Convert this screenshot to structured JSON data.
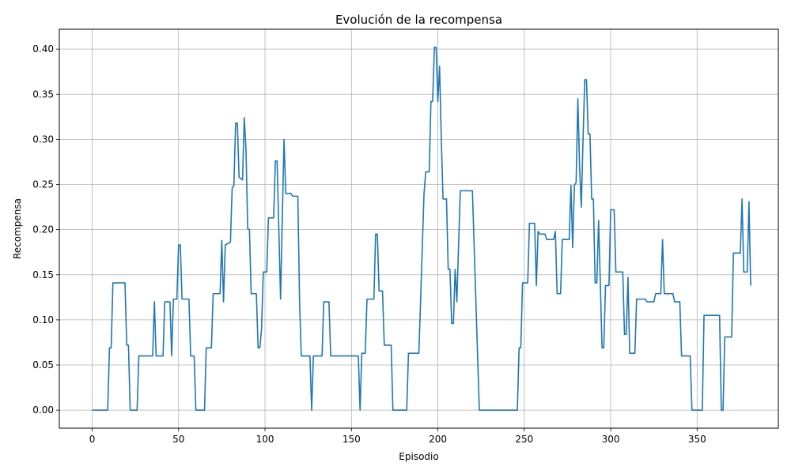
{
  "chart_data": {
    "type": "line",
    "title": "Evolución de la recompensa",
    "xlabel": "Episodio",
    "ylabel": "Recompensa",
    "xlim": [
      -19,
      397
    ],
    "ylim": [
      -0.02,
      0.422
    ],
    "xticks": [
      0,
      50,
      100,
      150,
      200,
      250,
      300,
      350
    ],
    "yticks": [
      0.0,
      0.05,
      0.1,
      0.15,
      0.2,
      0.25,
      0.3,
      0.35,
      0.4
    ],
    "ytick_labels": [
      "0.00",
      "0.05",
      "0.10",
      "0.15",
      "0.20",
      "0.25",
      "0.30",
      "0.35",
      "0.40"
    ],
    "grid": true,
    "legend": "none",
    "series": [
      {
        "color": "#1f77b4",
        "points": [
          [
            0,
            0
          ],
          [
            9,
            0
          ],
          [
            10,
            0.069
          ],
          [
            11,
            0.069
          ],
          [
            12,
            0.141
          ],
          [
            19,
            0.141
          ],
          [
            20,
            0.072
          ],
          [
            21,
            0.072
          ],
          [
            22,
            0
          ],
          [
            26,
            0
          ],
          [
            27,
            0.06
          ],
          [
            35,
            0.06
          ],
          [
            36,
            0.12
          ],
          [
            37,
            0.06
          ],
          [
            41,
            0.06
          ],
          [
            42,
            0.12
          ],
          [
            45,
            0.12
          ],
          [
            46,
            0.06
          ],
          [
            47,
            0.123
          ],
          [
            49,
            0.123
          ],
          [
            50,
            0.183
          ],
          [
            51,
            0.183
          ],
          [
            52,
            0.123
          ],
          [
            56,
            0.123
          ],
          [
            57,
            0.06
          ],
          [
            59,
            0.06
          ],
          [
            60,
            0
          ],
          [
            65,
            0
          ],
          [
            66,
            0.069
          ],
          [
            69,
            0.069
          ],
          [
            70,
            0.129
          ],
          [
            74,
            0.129
          ],
          [
            75,
            0.188
          ],
          [
            76,
            0.12
          ],
          [
            77,
            0.183
          ],
          [
            80,
            0.186
          ],
          [
            81,
            0.246
          ],
          [
            82,
            0.249
          ],
          [
            83,
            0.318
          ],
          [
            84,
            0.318
          ],
          [
            85,
            0.258
          ],
          [
            87,
            0.255
          ],
          [
            88,
            0.324
          ],
          [
            89,
            0.289
          ],
          [
            90,
            0.201
          ],
          [
            91,
            0.2
          ],
          [
            92,
            0.129
          ],
          [
            95,
            0.129
          ],
          [
            96,
            0.069
          ],
          [
            97,
            0.069
          ],
          [
            98,
            0.09
          ],
          [
            99,
            0.153
          ],
          [
            101,
            0.153
          ],
          [
            102,
            0.213
          ],
          [
            105,
            0.213
          ],
          [
            106,
            0.276
          ],
          [
            107,
            0.276
          ],
          [
            108,
            0.2
          ],
          [
            109,
            0.123
          ],
          [
            111,
            0.3
          ],
          [
            112,
            0.24
          ],
          [
            115,
            0.24
          ],
          [
            116,
            0.237
          ],
          [
            119,
            0.237
          ],
          [
            120,
            0.12
          ],
          [
            121,
            0.06
          ],
          [
            126,
            0.06
          ],
          [
            127,
            0
          ],
          [
            128,
            0.06
          ],
          [
            133,
            0.06
          ],
          [
            134,
            0.12
          ],
          [
            137,
            0.12
          ],
          [
            138,
            0.06
          ],
          [
            154,
            0.06
          ],
          [
            155,
            0
          ],
          [
            156,
            0.063
          ],
          [
            158,
            0.063
          ],
          [
            159,
            0.123
          ],
          [
            163,
            0.123
          ],
          [
            164,
            0.195
          ],
          [
            165,
            0.195
          ],
          [
            166,
            0.132
          ],
          [
            168,
            0.132
          ],
          [
            169,
            0.072
          ],
          [
            173,
            0.072
          ],
          [
            174,
            0
          ],
          [
            182,
            0
          ],
          [
            183,
            0.063
          ],
          [
            189,
            0.063
          ],
          [
            190,
            0.12
          ],
          [
            191,
            0.18
          ],
          [
            192,
            0.24
          ],
          [
            193,
            0.264
          ],
          [
            195,
            0.264
          ],
          [
            196,
            0.342
          ],
          [
            197,
            0.342
          ],
          [
            198,
            0.402
          ],
          [
            199,
            0.402
          ],
          [
            200,
            0.342
          ],
          [
            201,
            0.381
          ],
          [
            202,
            0.3
          ],
          [
            203,
            0.234
          ],
          [
            205,
            0.234
          ],
          [
            206,
            0.156
          ],
          [
            207,
            0.156
          ],
          [
            208,
            0.096
          ],
          [
            209,
            0.096
          ],
          [
            210,
            0.156
          ],
          [
            211,
            0.12
          ],
          [
            212,
            0.183
          ],
          [
            213,
            0.243
          ],
          [
            220,
            0.243
          ],
          [
            223,
            0.06
          ],
          [
            224,
            0
          ],
          [
            246,
            0
          ],
          [
            247,
            0.069
          ],
          [
            248,
            0.069
          ],
          [
            249,
            0.141
          ],
          [
            252,
            0.141
          ],
          [
            253,
            0.207
          ],
          [
            256,
            0.207
          ],
          [
            257,
            0.138
          ],
          [
            258,
            0.198
          ],
          [
            259,
            0.195
          ],
          [
            262,
            0.195
          ],
          [
            263,
            0.189
          ],
          [
            267,
            0.189
          ],
          [
            268,
            0.198
          ],
          [
            269,
            0.129
          ],
          [
            271,
            0.129
          ],
          [
            272,
            0.189
          ],
          [
            276,
            0.189
          ],
          [
            277,
            0.249
          ],
          [
            278,
            0.18
          ],
          [
            279,
            0.249
          ],
          [
            280,
            0.252
          ],
          [
            281,
            0.345
          ],
          [
            282,
            0.27
          ],
          [
            283,
            0.225
          ],
          [
            284,
            0.3
          ],
          [
            285,
            0.366
          ],
          [
            286,
            0.366
          ],
          [
            287,
            0.306
          ],
          [
            288,
            0.306
          ],
          [
            289,
            0.234
          ],
          [
            290,
            0.234
          ],
          [
            291,
            0.141
          ],
          [
            292,
            0.141
          ],
          [
            293,
            0.21
          ],
          [
            294,
            0.141
          ],
          [
            295,
            0.069
          ],
          [
            296,
            0.069
          ],
          [
            297,
            0.138
          ],
          [
            299,
            0.138
          ],
          [
            300,
            0.222
          ],
          [
            302,
            0.222
          ],
          [
            303,
            0.153
          ],
          [
            307,
            0.153
          ],
          [
            308,
            0.084
          ],
          [
            309,
            0.084
          ],
          [
            310,
            0.147
          ],
          [
            311,
            0.063
          ],
          [
            314,
            0.063
          ],
          [
            315,
            0.123
          ],
          [
            320,
            0.123
          ],
          [
            321,
            0.12
          ],
          [
            325,
            0.12
          ],
          [
            326,
            0.129
          ],
          [
            329,
            0.129
          ],
          [
            330,
            0.189
          ],
          [
            331,
            0.129
          ],
          [
            336,
            0.129
          ],
          [
            337,
            0.12
          ],
          [
            340,
            0.12
          ],
          [
            341,
            0.06
          ],
          [
            346,
            0.06
          ],
          [
            347,
            0
          ],
          [
            353,
            0
          ],
          [
            354,
            0.105
          ],
          [
            363,
            0.105
          ],
          [
            364,
            0
          ],
          [
            365,
            0
          ],
          [
            366,
            0.081
          ],
          [
            370,
            0.081
          ],
          [
            371,
            0.174
          ],
          [
            375,
            0.174
          ],
          [
            376,
            0.234
          ],
          [
            377,
            0.153
          ],
          [
            379,
            0.153
          ],
          [
            380,
            0.231
          ],
          [
            381,
            0.138
          ]
        ]
      }
    ]
  }
}
